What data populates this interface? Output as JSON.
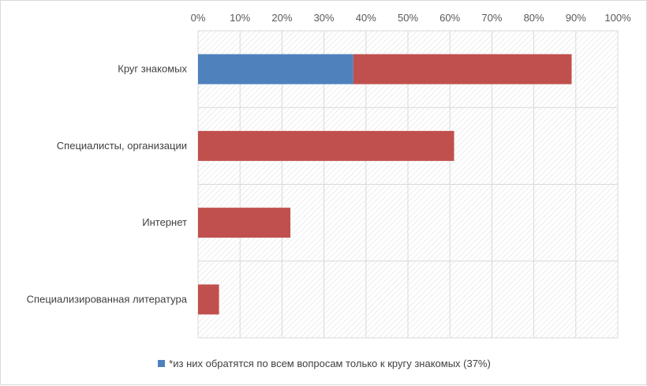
{
  "chart_data": {
    "type": "bar",
    "orientation": "horizontal",
    "stacked": true,
    "title": "",
    "xlabel": "",
    "ylabel": "",
    "xlim": [
      0,
      100
    ],
    "ticks": [
      "0%",
      "10%",
      "20%",
      "30%",
      "40%",
      "50%",
      "60%",
      "70%",
      "80%",
      "90%",
      "100%"
    ],
    "categories": [
      "Круг знакомых",
      "Специалисты, организации",
      "Интернет",
      "Специализированная литература"
    ],
    "series": [
      {
        "name": "*из них обратятся по всем вопросам только к кругу знакомых (37%)",
        "color": "#4f81bd",
        "values": [
          37,
          0,
          0,
          0
        ]
      },
      {
        "name": "",
        "color": "#c0504d",
        "values": [
          52,
          61,
          22,
          5
        ]
      }
    ],
    "legend": {
      "position": "bottom",
      "text": "*из них обратятся по всем вопросам только к кругу знакомых (37%)",
      "color": "#4f81bd"
    },
    "gridlines": true
  }
}
